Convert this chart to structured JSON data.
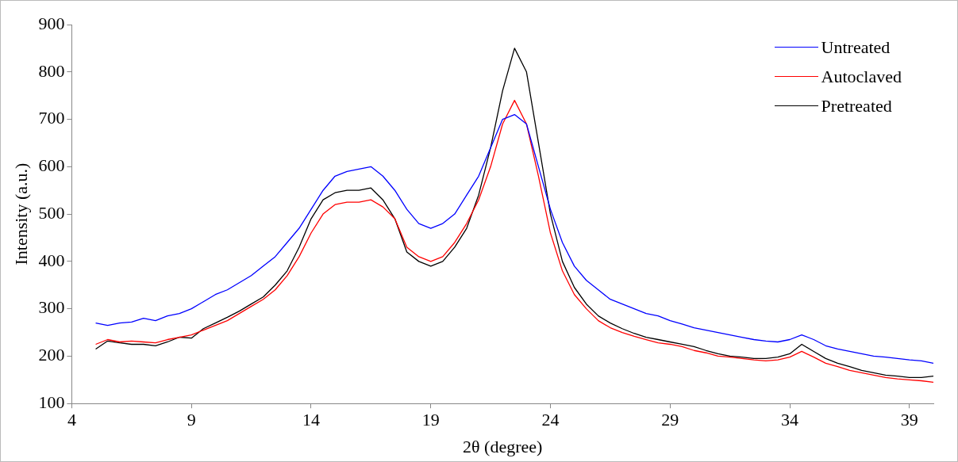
{
  "chart_data": {
    "type": "line",
    "xlabel": "2θ (degree)",
    "ylabel": "Intensity (a.u.)",
    "x": [
      5,
      5.5,
      6,
      6.5,
      7,
      7.5,
      8,
      8.5,
      9,
      9.5,
      10,
      10.5,
      11,
      11.5,
      12,
      12.5,
      13,
      13.5,
      14,
      14.5,
      15,
      15.5,
      16,
      16.5,
      17,
      17.5,
      18,
      18.5,
      19,
      19.5,
      20,
      20.5,
      21,
      21.5,
      22,
      22.5,
      23,
      23.5,
      24,
      24.5,
      25,
      25.5,
      26,
      26.5,
      27,
      27.5,
      28,
      28.5,
      29,
      29.5,
      30,
      30.5,
      31,
      31.5,
      32,
      32.5,
      33,
      33.5,
      34,
      34.5,
      35,
      35.5,
      36,
      36.5,
      37,
      37.5,
      38,
      38.5,
      39,
      39.5,
      40
    ],
    "series": [
      {
        "name": "Untreated",
        "color": "#0000ff",
        "values": [
          270,
          265,
          270,
          272,
          280,
          275,
          285,
          290,
          300,
          315,
          330,
          340,
          355,
          370,
          390,
          410,
          440,
          470,
          510,
          550,
          580,
          590,
          595,
          600,
          580,
          550,
          510,
          480,
          470,
          480,
          500,
          540,
          580,
          640,
          700,
          710,
          690,
          600,
          510,
          440,
          390,
          360,
          340,
          320,
          310,
          300,
          290,
          285,
          275,
          268,
          260,
          255,
          250,
          245,
          240,
          235,
          232,
          230,
          235,
          245,
          235,
          222,
          215,
          210,
          205,
          200,
          198,
          195,
          192,
          190,
          185
        ]
      },
      {
        "name": "Autoclaved",
        "color": "#ff0000",
        "values": [
          225,
          235,
          230,
          232,
          230,
          228,
          235,
          240,
          245,
          255,
          265,
          275,
          290,
          305,
          320,
          340,
          370,
          410,
          460,
          500,
          520,
          525,
          525,
          530,
          515,
          490,
          430,
          410,
          400,
          410,
          440,
          480,
          530,
          600,
          690,
          740,
          690,
          580,
          460,
          380,
          330,
          300,
          275,
          260,
          250,
          242,
          235,
          228,
          225,
          220,
          212,
          207,
          200,
          198,
          195,
          192,
          190,
          192,
          198,
          210,
          198,
          185,
          178,
          170,
          165,
          160,
          155,
          152,
          150,
          148,
          145
        ]
      },
      {
        "name": "Pretreated",
        "color": "#000000",
        "values": [
          215,
          232,
          228,
          225,
          225,
          222,
          230,
          240,
          238,
          258,
          270,
          282,
          295,
          310,
          325,
          350,
          380,
          430,
          490,
          530,
          545,
          550,
          550,
          555,
          530,
          490,
          420,
          400,
          390,
          400,
          430,
          470,
          540,
          640,
          760,
          850,
          800,
          650,
          500,
          400,
          345,
          310,
          285,
          270,
          258,
          248,
          240,
          235,
          230,
          225,
          220,
          212,
          205,
          200,
          198,
          195,
          195,
          198,
          205,
          225,
          210,
          195,
          185,
          178,
          170,
          165,
          160,
          158,
          155,
          155,
          158
        ]
      }
    ],
    "xlim": [
      4,
      40
    ],
    "xticks": [
      4,
      9,
      14,
      19,
      24,
      29,
      34,
      39
    ],
    "ylim": [
      100,
      900
    ],
    "yticks": [
      100,
      200,
      300,
      400,
      500,
      600,
      700,
      800,
      900
    ],
    "grid": false,
    "legend": "top right",
    "marker": "none",
    "line_style": "solid"
  }
}
